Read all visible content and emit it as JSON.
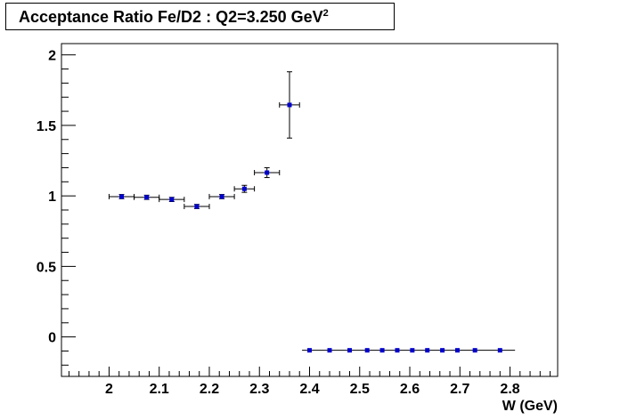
{
  "chart_data": {
    "type": "scatter",
    "title": "Acceptance Ratio Fe/D2 : Q2=3.250 GeV",
    "title_superscript": "2",
    "xlabel": "W (GeV)",
    "ylabel": "",
    "xlim": [
      1.905,
      2.895
    ],
    "ylim": [
      -0.28,
      2.08
    ],
    "x_ticks": [
      "2",
      "2.1",
      "2.2",
      "2.3",
      "2.4",
      "2.5",
      "2.6",
      "2.7",
      "2.8"
    ],
    "y_ticks": [
      "0",
      "0.5",
      "1",
      "1.5",
      "2"
    ],
    "grid": false,
    "marker_color": "#0000cc",
    "points": [
      {
        "x": 2.025,
        "y": 0.995,
        "xerr": 0.025,
        "yerr": 0.015
      },
      {
        "x": 2.075,
        "y": 0.99,
        "xerr": 0.025,
        "yerr": 0.015
      },
      {
        "x": 2.125,
        "y": 0.975,
        "xerr": 0.025,
        "yerr": 0.015
      },
      {
        "x": 2.175,
        "y": 0.925,
        "xerr": 0.025,
        "yerr": 0.015
      },
      {
        "x": 2.225,
        "y": 0.995,
        "xerr": 0.025,
        "yerr": 0.015
      },
      {
        "x": 2.27,
        "y": 1.05,
        "xerr": 0.02,
        "yerr": 0.025
      },
      {
        "x": 2.315,
        "y": 1.165,
        "xerr": 0.025,
        "yerr": 0.035
      },
      {
        "x": 2.36,
        "y": 1.645,
        "xerr": 0.02,
        "yerr": 0.235
      },
      {
        "x": 2.4,
        "y": -0.095,
        "xerr": 0.0,
        "yerr": 0.0
      },
      {
        "x": 2.44,
        "y": -0.095,
        "xerr": 0.0,
        "yerr": 0.0
      },
      {
        "x": 2.48,
        "y": -0.095,
        "xerr": 0.0,
        "yerr": 0.0
      },
      {
        "x": 2.515,
        "y": -0.095,
        "xerr": 0.0,
        "yerr": 0.0
      },
      {
        "x": 2.545,
        "y": -0.095,
        "xerr": 0.0,
        "yerr": 0.0
      },
      {
        "x": 2.575,
        "y": -0.095,
        "xerr": 0.0,
        "yerr": 0.0
      },
      {
        "x": 2.605,
        "y": -0.095,
        "xerr": 0.0,
        "yerr": 0.0
      },
      {
        "x": 2.635,
        "y": -0.095,
        "xerr": 0.0,
        "yerr": 0.0
      },
      {
        "x": 2.665,
        "y": -0.095,
        "xerr": 0.0,
        "yerr": 0.0
      },
      {
        "x": 2.695,
        "y": -0.095,
        "xerr": 0.0,
        "yerr": 0.0
      },
      {
        "x": 2.73,
        "y": -0.095,
        "xerr": 0.0,
        "yerr": 0.0
      },
      {
        "x": 2.78,
        "y": -0.095,
        "xerr": 0.0,
        "yerr": 0.0
      }
    ],
    "baseline_segment": {
      "x_start": 2.385,
      "x_end": 2.81,
      "y": -0.095
    }
  }
}
